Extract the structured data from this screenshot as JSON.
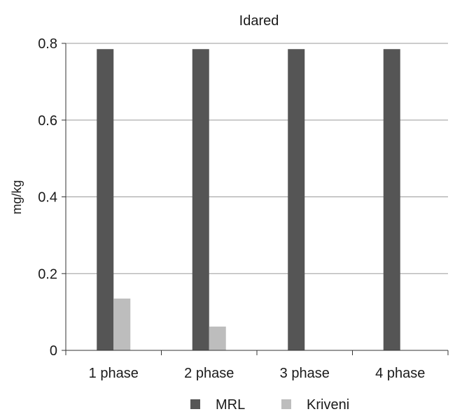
{
  "chart_data": {
    "type": "bar",
    "title": "Idared",
    "xlabel": "",
    "ylabel": "mg/kg",
    "categories": [
      "1 phase",
      "2 phase",
      "3 phase",
      "4 phase"
    ],
    "series": [
      {
        "name": "MRL",
        "values": [
          0.785,
          0.785,
          0.785,
          0.785
        ],
        "color": "#555555"
      },
      {
        "name": "Kriveni",
        "values": [
          0.135,
          0.062,
          0,
          0
        ],
        "color": "#bdbdbd"
      }
    ],
    "ylim": [
      0,
      0.8
    ],
    "yticks": [
      "0",
      "0.2",
      "0.4",
      "0.6",
      "0.8"
    ],
    "grid": true,
    "legend_position": "bottom"
  }
}
